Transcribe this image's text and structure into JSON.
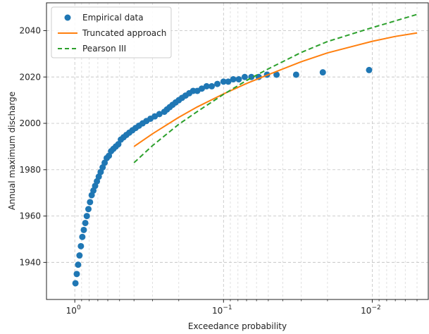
{
  "chart_data": {
    "type": "line",
    "title": "",
    "xlabel": "Exceedance probability",
    "ylabel": "Annual maximum discharge",
    "xscale": "log",
    "xaxis_inverted": true,
    "xlim": [
      1.55,
      0.0042
    ],
    "ylim": [
      1924,
      2052
    ],
    "grid": "on (major and minor, dashed)",
    "legend_placement": "top-left",
    "x_ticks": [
      {
        "value": 1,
        "label": "10",
        "exp": "0"
      },
      {
        "value": 0.1,
        "label": "10",
        "exp": "−1"
      },
      {
        "value": 0.01,
        "label": "10",
        "exp": "−2"
      }
    ],
    "y_ticks": [
      1940,
      1960,
      1980,
      2000,
      2020,
      2040
    ],
    "colors": {
      "empirical": "#1f77b4",
      "truncated": "#ff7f0e",
      "pearson": "#2ca02c"
    },
    "series": [
      {
        "name": "Empirical data",
        "type": "scatter",
        "x": [
          0.99,
          0.97,
          0.95,
          0.93,
          0.91,
          0.89,
          0.87,
          0.85,
          0.83,
          0.81,
          0.79,
          0.77,
          0.75,
          0.73,
          0.71,
          0.69,
          0.67,
          0.65,
          0.63,
          0.61,
          0.59,
          0.57,
          0.55,
          0.53,
          0.51,
          0.49,
          0.47,
          0.45,
          0.43,
          0.41,
          0.39,
          0.37,
          0.35,
          0.33,
          0.31,
          0.29,
          0.27,
          0.25,
          0.24,
          0.23,
          0.22,
          0.21,
          0.2,
          0.19,
          0.18,
          0.17,
          0.16,
          0.15,
          0.14,
          0.13,
          0.12,
          0.11,
          0.1,
          0.093,
          0.086,
          0.079,
          0.072,
          0.065,
          0.058,
          0.051,
          0.044,
          0.0325,
          0.0215,
          0.0105
        ],
        "y": [
          1931,
          1935,
          1939,
          1943,
          1947,
          1951,
          1954,
          1957,
          1960,
          1963,
          1966,
          1969,
          1971,
          1973,
          1975,
          1977,
          1979,
          1981,
          1983,
          1985,
          1986,
          1988,
          1989,
          1990,
          1991,
          1993,
          1994,
          1995,
          1996,
          1997,
          1998,
          1999,
          2000,
          2001,
          2002,
          2003,
          2004,
          2005,
          2006,
          2007,
          2008,
          2009,
          2010,
          2011,
          2012,
          2013,
          2014,
          2014,
          2015,
          2016,
          2016,
          2017,
          2018,
          2018,
          2019,
          2019,
          2020,
          2020,
          2020,
          2021,
          2021,
          2021,
          2022,
          2023
        ]
      },
      {
        "name": "Truncated approach",
        "type": "line",
        "x": [
          0.4,
          0.3,
          0.2,
          0.15,
          0.1,
          0.07,
          0.05,
          0.03,
          0.02,
          0.01,
          0.007,
          0.005
        ],
        "y": [
          1990,
          1995.5,
          2002.6,
          2007.1,
          2012.7,
          2017.2,
          2021.0,
          2026.6,
          2030.4,
          2035.4,
          2037.5,
          2039
        ]
      },
      {
        "name": "Pearson III",
        "type": "line",
        "x": [
          0.4,
          0.3,
          0.2,
          0.15,
          0.1,
          0.07,
          0.05,
          0.03,
          0.02,
          0.01,
          0.007,
          0.005
        ],
        "y": [
          1983,
          1990.4,
          1999.6,
          2005.1,
          2012.5,
          2018.5,
          2023.5,
          2030.6,
          2035.3,
          2041.3,
          2044.2,
          2047
        ]
      }
    ]
  }
}
